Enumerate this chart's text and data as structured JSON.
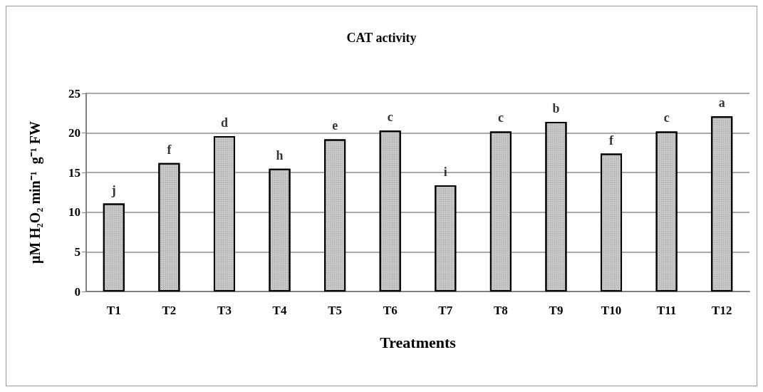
{
  "chart_data": {
    "type": "bar",
    "title": "CAT activity",
    "xlabel": "Treatments",
    "ylabel": "μM H₂O₂ min⁻¹  g⁻¹ FW",
    "categories": [
      "T1",
      "T2",
      "T3",
      "T4",
      "T5",
      "T6",
      "T7",
      "T8",
      "T9",
      "T10",
      "T11",
      "T12"
    ],
    "values": [
      11.1,
      16.2,
      19.6,
      15.5,
      19.2,
      20.3,
      13.4,
      20.2,
      21.4,
      17.4,
      20.2,
      22.1
    ],
    "color": "#c8c8c8",
    "ylim": [
      0,
      25
    ],
    "yticks": [
      0,
      5,
      10,
      15,
      20,
      25
    ],
    "grid": "y",
    "annotations": [
      {
        "text": "j",
        "x": "T1",
        "y": 11.1
      },
      {
        "text": "f",
        "x": "T2",
        "y": 16.2
      },
      {
        "text": "d",
        "x": "T3",
        "y": 19.6
      },
      {
        "text": "h",
        "x": "T4",
        "y": 15.5
      },
      {
        "text": "e",
        "x": "T5",
        "y": 19.2
      },
      {
        "text": "c",
        "x": "T6",
        "y": 20.3
      },
      {
        "text": "i",
        "x": "T7",
        "y": 13.4
      },
      {
        "text": "c",
        "x": "T8",
        "y": 20.2
      },
      {
        "text": "b",
        "x": "T9",
        "y": 21.4
      },
      {
        "text": "f",
        "x": "T10",
        "y": 17.4
      },
      {
        "text": "c",
        "x": "T11",
        "y": 20.2
      },
      {
        "text": "a",
        "x": "T12",
        "y": 22.1
      }
    ]
  }
}
